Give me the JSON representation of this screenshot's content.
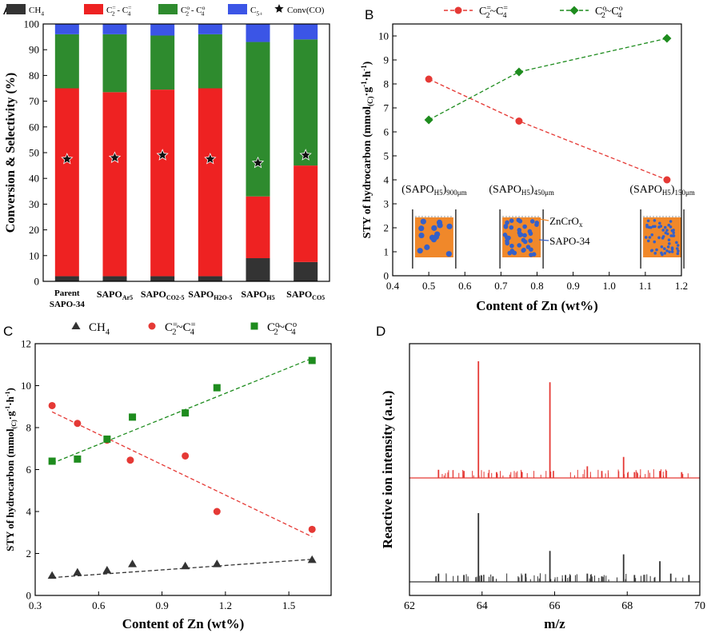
{
  "colors": {
    "ch4": "#333333",
    "olefin": "#ee2222",
    "paraffin": "#2e8b2e",
    "c5": "#3b55e6",
    "red_line": "#e53935",
    "green_line": "#1e8c1e",
    "black_line": "#333333",
    "orange": "#f0882a",
    "blue_dot": "#3560c8"
  },
  "chart_data": [
    {
      "panel": "A",
      "type": "bar",
      "stacked": true,
      "categories": [
        "Parent SAPO-34",
        "SAPO_Ar5",
        "SAPO_CO2-5",
        "SAPO_H2O-5",
        "SAPO_H5",
        "SAPO_CO5"
      ],
      "category_lines": [
        [
          "Parent",
          "SAPO-34"
        ],
        [
          "SAPO",
          "Ar5"
        ],
        [
          "SAPO",
          "CO2-5"
        ],
        [
          "SAPO",
          "H2O-5"
        ],
        [
          "SAPO",
          "H5"
        ],
        [
          "SAPO",
          "CO5"
        ]
      ],
      "series": [
        {
          "name": "CH4",
          "legend": [
            "CH",
            "4",
            ""
          ],
          "color_key": "ch4",
          "values": [
            2,
            2,
            2,
            2,
            9,
            7.5
          ]
        },
        {
          "name": "C2= - C4=",
          "legend": [
            "C",
            "2",
            "=",
            " - C",
            "4",
            "="
          ],
          "color_key": "olefin",
          "values": [
            73,
            71.5,
            72.5,
            73,
            24,
            37.5
          ]
        },
        {
          "name": "C2o - C4o",
          "legend": [
            "C",
            "2",
            "o",
            " - C",
            "4",
            "o"
          ],
          "color_key": "paraffin",
          "values": [
            21,
            22.5,
            21,
            21,
            60,
            49
          ]
        },
        {
          "name": "C5+",
          "legend": [
            "C",
            "5+",
            ""
          ],
          "color_key": "c5",
          "values": [
            4,
            4,
            4.5,
            4,
            7,
            6
          ]
        }
      ],
      "markers": {
        "name": "Conv(CO)",
        "label": "Conv(CO)",
        "values": [
          47.5,
          48,
          49,
          47.5,
          46,
          49
        ]
      },
      "ylabel": "Conversion & Selectivity (%)",
      "ylim": [
        0,
        100
      ],
      "yticks": [
        0,
        10,
        20,
        30,
        40,
        50,
        60,
        70,
        80,
        90,
        100
      ],
      "panel_letter": "A"
    },
    {
      "panel": "B",
      "type": "line",
      "series": [
        {
          "name": "C2=~C4=",
          "legend": [
            "C",
            "2",
            "=",
            "~C",
            "4",
            "="
          ],
          "color_key": "red_line",
          "marker": "circle",
          "x": [
            0.5,
            0.75,
            1.16
          ],
          "y": [
            8.2,
            6.45,
            4.0
          ]
        },
        {
          "name": "C2o~C4o",
          "legend": [
            "C",
            "2",
            "o",
            "~C",
            "4",
            "o"
          ],
          "color_key": "green_line",
          "marker": "diamond",
          "x": [
            0.5,
            0.75,
            1.16
          ],
          "y": [
            6.5,
            8.5,
            9.9
          ]
        }
      ],
      "xlabel": "Content of Zn (wt%)",
      "ylabel": "STY of hydrocarbon (mmol(C)·g-1·h-1)",
      "xlim": [
        0.4,
        1.2
      ],
      "ylim": [
        0,
        10.5
      ],
      "xticks": [
        0.4,
        0.5,
        0.6,
        0.7,
        0.8,
        0.9,
        1.0,
        1.1,
        1.2
      ],
      "yticks": [
        0,
        1,
        2,
        3,
        4,
        5,
        6,
        7,
        8,
        9,
        10
      ],
      "insets": [
        {
          "label_base": "(SAPO",
          "label_sub": "H5",
          "label_close": ")",
          "label_size": "900μm",
          "x": 0.515
        },
        {
          "label_base": "(SAPO",
          "label_sub": "H5",
          "label_close": ")",
          "label_size": "450μm",
          "x": 0.757
        },
        {
          "label_base": "(SAPO",
          "label_sub": "H5",
          "label_close": ")",
          "label_size": "150μm",
          "x": 1.147
        }
      ],
      "inset_annotations": {
        "zncrox": "ZnCrO",
        "zncrox_sub": "x",
        "sapo34": "SAPO-34"
      },
      "panel_letter": "B"
    },
    {
      "panel": "C",
      "type": "scatter",
      "series": [
        {
          "name": "CH4",
          "legend": [
            "CH",
            "4",
            ""
          ],
          "color_key": "black_line",
          "marker": "triangle",
          "x": [
            0.38,
            0.5,
            0.64,
            0.76,
            1.01,
            1.16,
            1.61
          ],
          "y": [
            0.95,
            1.1,
            1.2,
            1.5,
            1.4,
            1.5,
            1.7
          ],
          "fit": [
            [
              0.38,
              0.85
            ],
            [
              1.61,
              1.72
            ]
          ]
        },
        {
          "name": "C2=~C4=",
          "legend": [
            "C",
            "2",
            "=",
            "~C",
            "4",
            "="
          ],
          "color_key": "red_line",
          "marker": "circle",
          "x": [
            0.38,
            0.5,
            0.64,
            0.75,
            1.01,
            1.16,
            1.61
          ],
          "y": [
            9.05,
            8.2,
            7.4,
            6.45,
            6.65,
            4.0,
            3.15
          ],
          "fit": [
            [
              0.38,
              8.75
            ],
            [
              1.61,
              2.8
            ]
          ]
        },
        {
          "name": "C2o~C4o",
          "legend": [
            "C",
            "2",
            "o",
            "~C",
            "4",
            "o"
          ],
          "color_key": "green_line",
          "marker": "square",
          "x": [
            0.38,
            0.5,
            0.64,
            0.76,
            1.01,
            1.16,
            1.61
          ],
          "y": [
            6.4,
            6.5,
            7.45,
            8.5,
            8.7,
            9.9,
            11.2
          ],
          "fit": [
            [
              0.38,
              6.3
            ],
            [
              1.61,
              11.3
            ]
          ]
        }
      ],
      "xlabel": "Content of Zn (wt%)",
      "ylabel": "STY of hydrocarbon (mmol(C)·g-1·h-1)",
      "xlim": [
        0.3,
        1.7
      ],
      "ylim": [
        0,
        12
      ],
      "xticks": [
        0.3,
        0.6,
        0.9,
        1.2,
        1.5
      ],
      "yticks": [
        0,
        2,
        4,
        6,
        8,
        10,
        12
      ],
      "panel_letter": "C"
    },
    {
      "panel": "D",
      "type": "line",
      "series": [
        {
          "name": "red spectrum",
          "color_key": "red_line",
          "peaks": [
            [
              63.9,
              1.0
            ],
            [
              65.87,
              0.82
            ],
            [
              67.9,
              0.18
            ],
            [
              66.9,
              0.1
            ],
            [
              62.8,
              0.07
            ],
            [
              63.5,
              0.06
            ],
            [
              64.4,
              0.05
            ],
            [
              65.1,
              0.05
            ],
            [
              67.3,
              0.06
            ],
            [
              68.2,
              0.05
            ],
            [
              68.9,
              0.06
            ],
            [
              69.5,
              0.05
            ]
          ]
        },
        {
          "name": "black spectrum",
          "color_key": "black_line",
          "peaks": [
            [
              63.9,
              1.0
            ],
            [
              65.87,
              0.45
            ],
            [
              67.9,
              0.4
            ],
            [
              68.9,
              0.3
            ],
            [
              62.8,
              0.12
            ],
            [
              63.5,
              0.1
            ],
            [
              64.3,
              0.08
            ],
            [
              65.2,
              0.12
            ],
            [
              66.3,
              0.1
            ],
            [
              66.9,
              0.12
            ],
            [
              67.3,
              0.08
            ],
            [
              68.2,
              0.1
            ],
            [
              69.2,
              0.12
            ],
            [
              69.7,
              0.1
            ]
          ]
        }
      ],
      "xlabel": "m/z",
      "ylabel": "Reactive ion intensity (a.u.)",
      "xlim": [
        62,
        70
      ],
      "xticks": [
        62,
        64,
        66,
        68,
        70
      ],
      "panel_letter": "D"
    }
  ]
}
